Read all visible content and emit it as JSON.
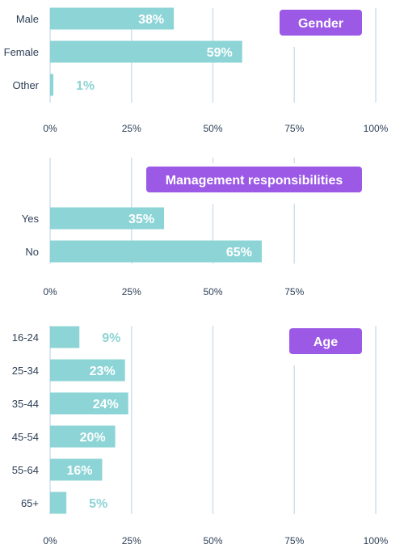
{
  "colors": {
    "bar": "#8dd4d6",
    "grid": "#cfe0ee",
    "axis_text": "#2e4057",
    "badge_bg": "#9b59e6",
    "badge_text": "#ffffff",
    "label_inside": "#ffffff",
    "label_outside": "#8dd4d6"
  },
  "chart_data": [
    {
      "type": "bar",
      "orientation": "horizontal",
      "title": "Gender",
      "categories": [
        "Male",
        "Female",
        "Other"
      ],
      "values": [
        38,
        59,
        1
      ],
      "value_labels": [
        "38%",
        "59%",
        "1%"
      ],
      "xlim": [
        0,
        100
      ],
      "x_ticks": [
        "0%",
        "25%",
        "50%",
        "75%",
        "100%"
      ],
      "grid": true
    },
    {
      "type": "bar",
      "orientation": "horizontal",
      "title": "Management responsibilities",
      "categories": [
        "Yes",
        "No"
      ],
      "values": [
        35,
        65
      ],
      "value_labels": [
        "35%",
        "65%"
      ],
      "xlim": [
        0,
        100
      ],
      "x_ticks": [
        "0%",
        "25%",
        "50%",
        "75%"
      ],
      "grid": true
    },
    {
      "type": "bar",
      "orientation": "horizontal",
      "title": "Age",
      "categories": [
        "16-24",
        "25-34",
        "35-44",
        "45-54",
        "55-64",
        "65+"
      ],
      "values": [
        9,
        23,
        24,
        20,
        16,
        5
      ],
      "value_labels": [
        "9%",
        "23%",
        "24%",
        "20%",
        "16%",
        "5%"
      ],
      "xlim": [
        0,
        100
      ],
      "x_ticks": [
        "0%",
        "25%",
        "50%",
        "75%",
        "100%"
      ],
      "grid": true
    }
  ]
}
